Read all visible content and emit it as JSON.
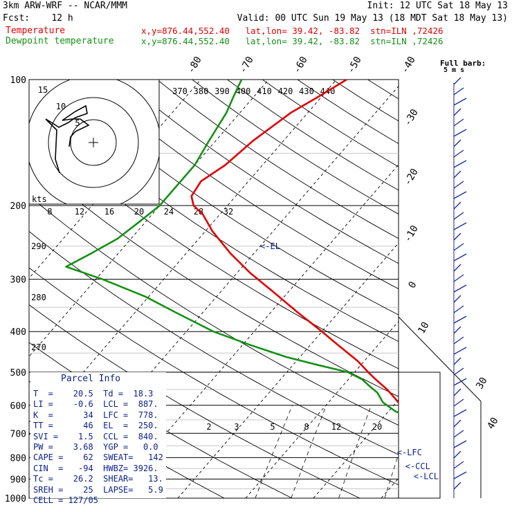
{
  "header": {
    "model": "3km ARW-WRF -- NCAR/MMM",
    "init": "Init: 12 UTC Sat 18 May 13",
    "fcst": "Fcst:    12 h",
    "valid": "Valid: 00 UTC Sun 19 May 13 (18 MDT Sat 18 May 13)",
    "temp_label": "Temperature",
    "temp_info": "x,y=876.44,552.40   lat,lon= 39.42, -83.82  stn=ILN ,72426",
    "dew_label": "Dewpoint temperature",
    "dew_info": "x,y=876.44,552.40   lat,lon= 39.42, -83.82  stn=ILN ,72426"
  },
  "colors": {
    "temperature": "#e00000",
    "dewpoint": "#159015",
    "wind": "#1a2a9a",
    "info": "#0a1f8a"
  },
  "chart_data": {
    "type": "line",
    "plot": "skew-T log-P sounding",
    "y_axis": {
      "scale": "log",
      "ticks": [
        "100",
        "200",
        "300",
        "400",
        "500",
        "600",
        "700",
        "800",
        "900",
        "1000"
      ]
    },
    "isotherm_labels": [
      "-80",
      "-70",
      "-60",
      "-50",
      "-40",
      "-30",
      "-20",
      "-10",
      "0",
      "10",
      "30",
      "40"
    ],
    "theta_labels": [
      "370",
      "380",
      "390",
      "400",
      "410",
      "420",
      "430",
      "440"
    ],
    "theta_left_labels": [
      "290",
      "280",
      "270"
    ],
    "mixing_ratio_labels": [
      "2",
      "3",
      "5",
      "8",
      "12",
      "20"
    ],
    "hodo_speed_labels": [
      "8",
      "12",
      "16",
      "20",
      "24",
      "28",
      "32"
    ],
    "hodo_ring_labels": [
      "5",
      "10",
      "15"
    ],
    "hodo_unit": "kts",
    "full_barb": "Full barb:",
    "full_barb_unit": "5 m s",
    "series": [
      {
        "name": "Temperature",
        "color": "#e00000",
        "p": [
          977,
          950,
          920,
          900,
          870,
          820,
          780,
          730,
          700,
          660,
          620,
          580,
          550,
          520,
          500,
          470,
          430,
          400,
          360,
          320,
          290,
          260,
          230,
          210,
          200,
          190,
          175,
          160,
          140,
          120,
          110,
          100
        ],
        "t": [
          20.5,
          20.2,
          19.2,
          17.5,
          15.5,
          12.5,
          10.5,
          8.0,
          6.0,
          4.5,
          2.5,
          -0.5,
          -3,
          -6,
          -8,
          -11,
          -16,
          -20,
          -26,
          -32.5,
          -38,
          -43.5,
          -49,
          -52.5,
          -55,
          -56.5,
          -57,
          -55.5,
          -54.5,
          -52.5,
          -50.5,
          -48.5
        ]
      },
      {
        "name": "Dewpoint temperature",
        "color": "#159015",
        "p": [
          977,
          960,
          950,
          930,
          900,
          870,
          820,
          780,
          740,
          700,
          680,
          650,
          620,
          590,
          560,
          540,
          520,
          500,
          480,
          460,
          430,
          400,
          360,
          330,
          300,
          280,
          260,
          240,
          220,
          200,
          180,
          160,
          140,
          120,
          110,
          100
        ],
        "t": [
          18.3,
          18.0,
          16.5,
          15.5,
          13.0,
          11.5,
          10.0,
          8.5,
          8.0,
          8.5,
          7.5,
          5.0,
          1.0,
          -2.0,
          -4.0,
          -6.0,
          -8.0,
          -11,
          -16.5,
          -22,
          -29,
          -36,
          -44,
          -50.5,
          -59,
          -66,
          -64,
          -62,
          -61,
          -60,
          -60,
          -60,
          -61,
          -62,
          -63,
          -64
        ]
      }
    ],
    "annotations": [
      {
        "label": "<-EL",
        "p": 250,
        "t": -40
      },
      {
        "label": "<-LFC",
        "p": 778,
        "t": 6.5
      },
      {
        "label": "<-CCL",
        "p": 840,
        "t": 9.5
      },
      {
        "label": "<-LCL",
        "p": 887,
        "t": 12.0
      }
    ]
  },
  "parcel_info": {
    "title": "Parcel Info",
    "rows": [
      "T  =    20.5  Td =  18.3",
      "LI =    -0.6  LCL =  887.",
      "K  =      34  LFC =  778.",
      "TT =      46  EL  =  250.",
      "SVI =    1.5  CCL =  840.",
      "PW =    3.68  YGP =   0.0",
      "CAPE =    62  SWEAT=   142",
      "CIN  =   -94  HWBZ= 3926.",
      "Tc =    26.2  SHEAR=   13.",
      "SREH =    25  LAPSE=   5.9",
      "CELL = 127/05"
    ]
  }
}
